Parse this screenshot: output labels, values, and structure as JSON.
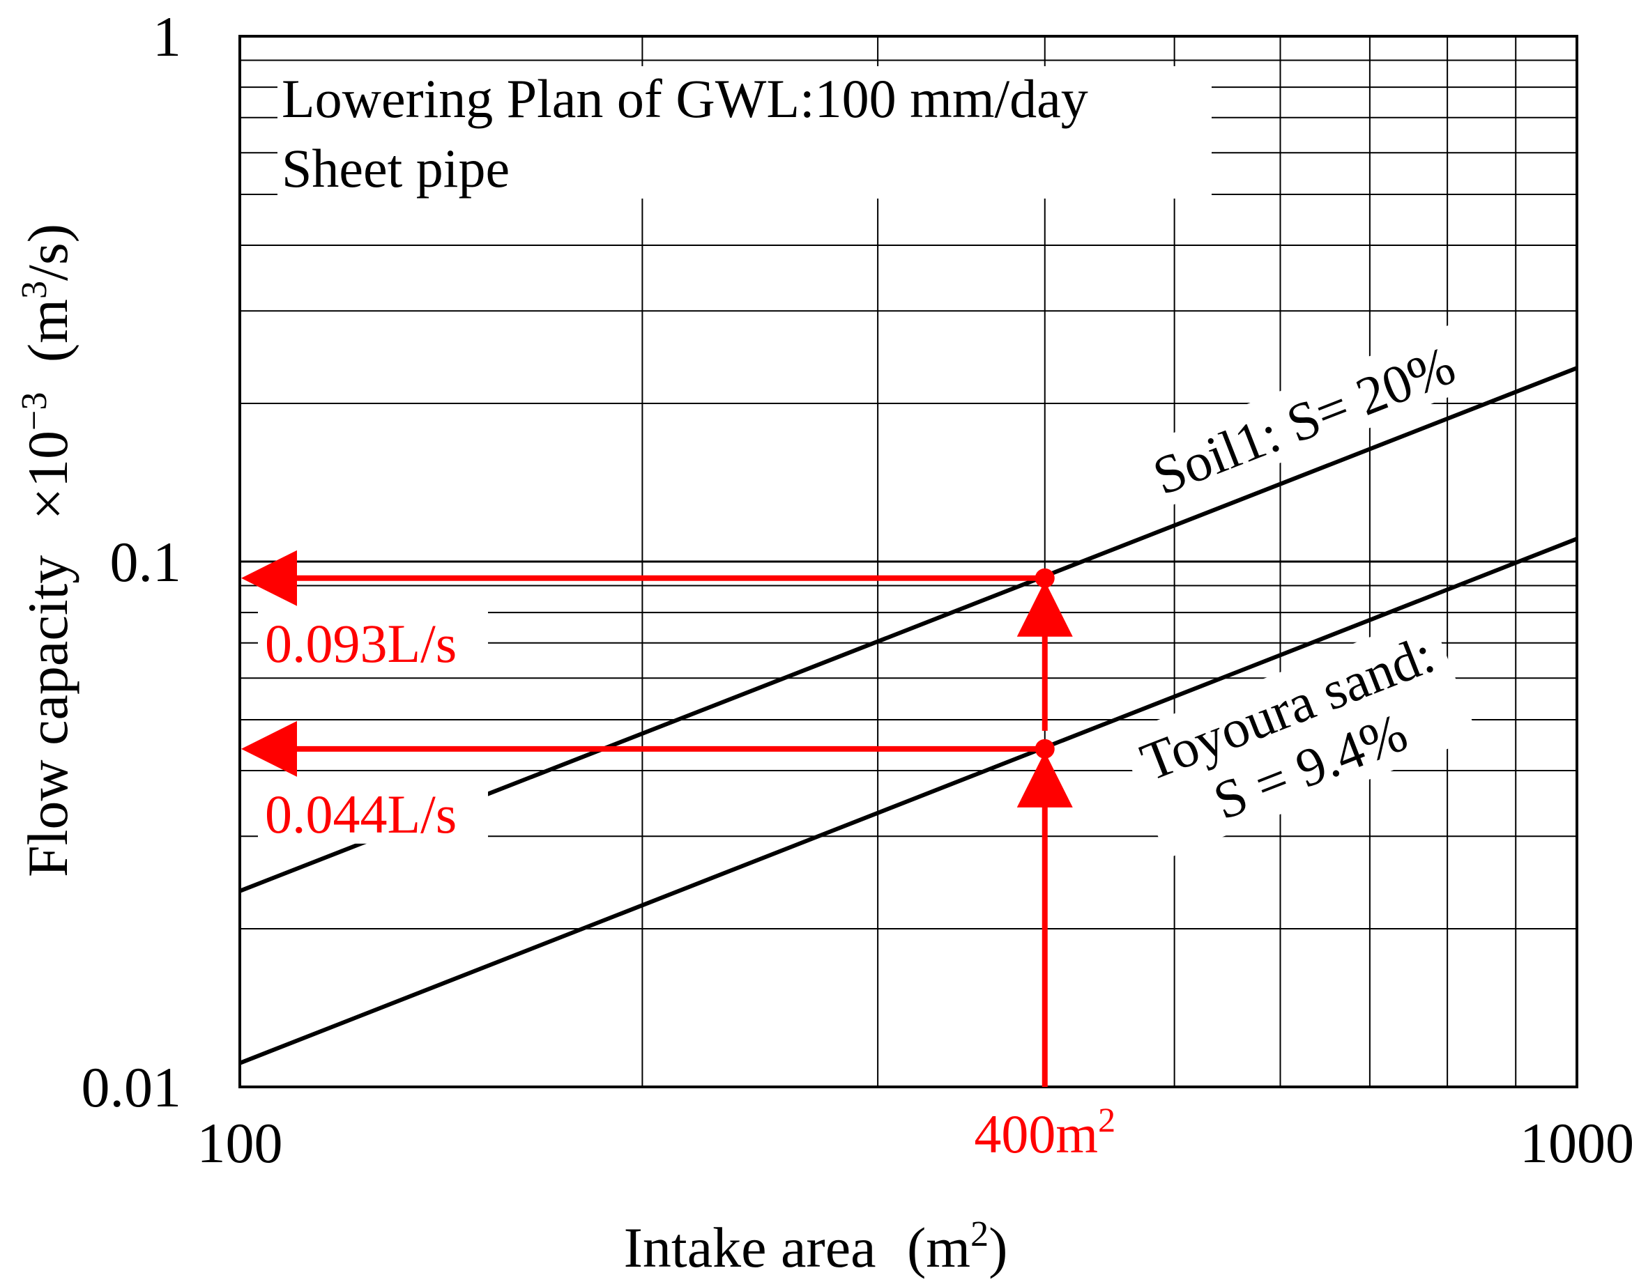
{
  "chart_data": {
    "type": "line",
    "x_scale": "log",
    "y_scale": "log",
    "xlim": [
      100,
      1000
    ],
    "ylim": [
      0.01,
      1
    ],
    "grid": true,
    "x_ticks": [
      "100",
      "1000"
    ],
    "y_ticks": [
      "0.01",
      "0.1",
      "1"
    ],
    "xlabel": {
      "main": "Intake area",
      "unit_pre": "(m",
      "unit_sup": "2",
      "unit_post": ")"
    },
    "ylabel": {
      "main": "Flow capacity",
      "mult_pre": "×10",
      "mult_sup": "−3",
      "unit_pre": "(m",
      "unit_sup": "3",
      "unit_post": "/s)"
    },
    "notes": [
      "Lowering Plan of GWL:100 mm/day",
      "Sheet pipe"
    ],
    "series": [
      {
        "name": "Soil1: S= 20%",
        "x": [
          100,
          1000
        ],
        "y": [
          0.0236,
          0.2336
        ]
      },
      {
        "name_line1": "Toyoura sand:",
        "name_line2": "S = 9.4%",
        "x": [
          100,
          1000
        ],
        "y": [
          0.0111,
          0.1105
        ]
      }
    ],
    "annotations": {
      "x_marker": {
        "value": 400,
        "label_pre": "400m",
        "label_sup": "2"
      },
      "points": [
        {
          "x": 400,
          "y": 0.093,
          "label": "0.093L/s"
        },
        {
          "x": 400,
          "y": 0.044,
          "label": "0.044L/s"
        }
      ],
      "color": "#ff0000"
    },
    "line_color": "#000000"
  }
}
